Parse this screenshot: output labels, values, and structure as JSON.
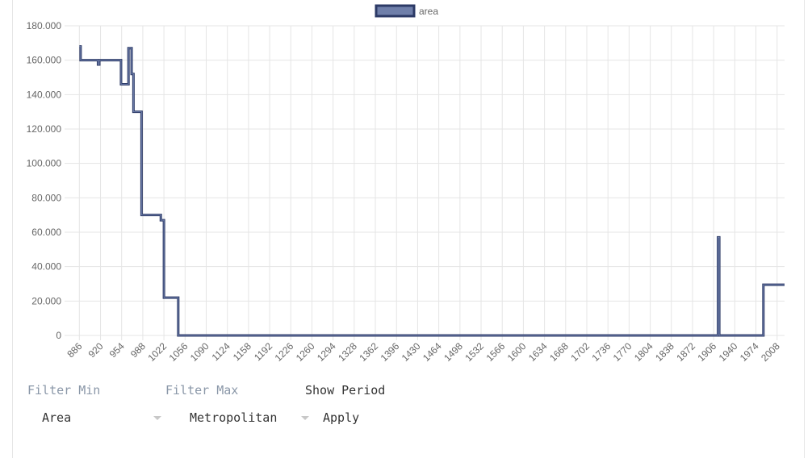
{
  "chart_data": {
    "type": "line",
    "stepped": true,
    "grid": true,
    "series": [
      {
        "name": "area",
        "color": "#2c3a66",
        "x": [
          886,
          888,
          916,
          918,
          953,
          965,
          970,
          973,
          986,
          1017,
          1022,
          1045,
          1913,
          1915,
          1986,
          2020
        ],
        "values": [
          168000,
          160000,
          157500,
          160000,
          146000,
          167000,
          152000,
          130000,
          70000,
          67000,
          22000,
          0,
          57000,
          0,
          29500,
          29500
        ]
      }
    ],
    "xlim": [
      870,
      2020
    ],
    "xticks": [
      886,
      920,
      954,
      988,
      1022,
      1056,
      1090,
      1124,
      1158,
      1192,
      1226,
      1260,
      1294,
      1328,
      1362,
      1396,
      1430,
      1464,
      1498,
      1532,
      1566,
      1600,
      1634,
      1668,
      1702,
      1736,
      1770,
      1804,
      1838,
      1872,
      1906,
      1940,
      1974,
      2008
    ],
    "ylim": [
      0,
      180000
    ],
    "yticks": [
      0,
      {
        "value": 20000,
        "label": "20.000"
      },
      {
        "value": 40000,
        "label": "40.000"
      },
      {
        "value": 60000,
        "label": "60.000"
      },
      {
        "value": 80000,
        "label": "80.000"
      },
      {
        "value": 100000,
        "label": "100.000"
      },
      {
        "value": 120000,
        "label": "120.000"
      },
      {
        "value": 140000,
        "label": "140.000"
      },
      {
        "value": 160000,
        "label": "160.000"
      },
      {
        "value": 180000,
        "label": "180.000"
      }
    ]
  },
  "controls": {
    "filter_min": "Filter Min",
    "filter_max": "Filter Max",
    "show_period": "Show Period",
    "area_select": "Area",
    "metro_select": "Metropolitan",
    "apply": "Apply"
  }
}
